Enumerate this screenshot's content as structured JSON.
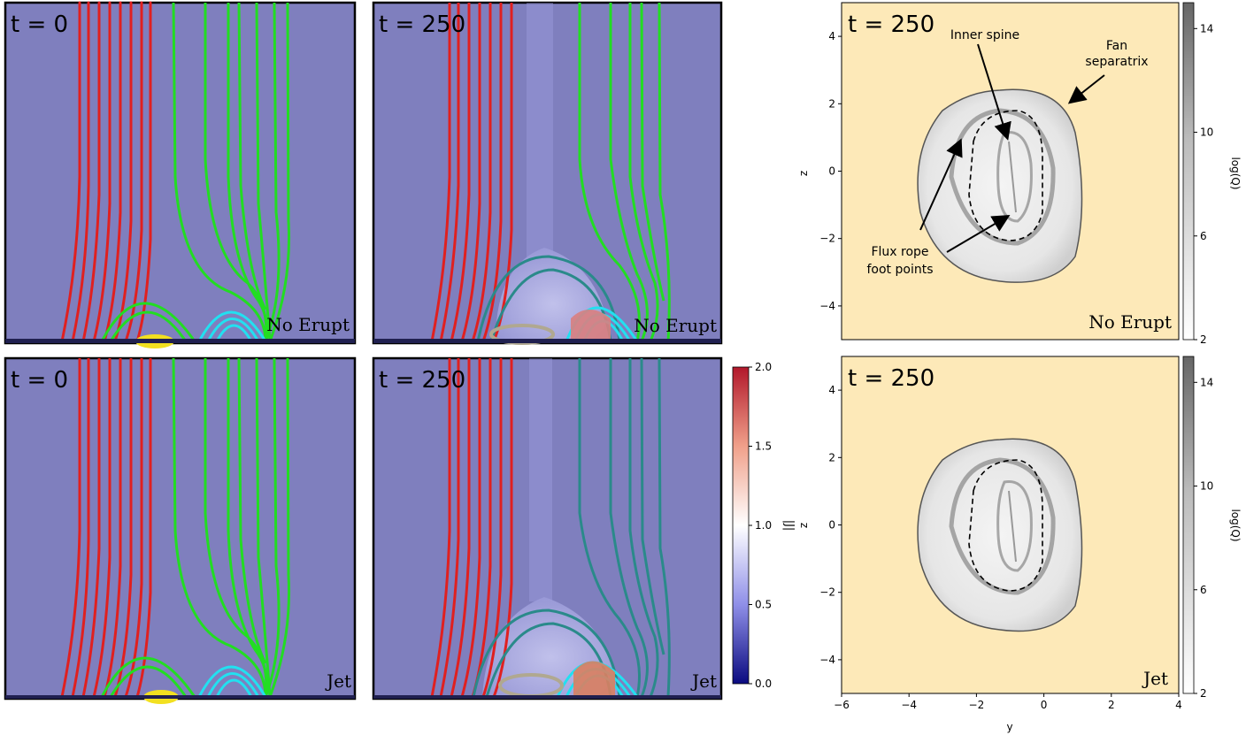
{
  "panels": {
    "top_left": {
      "time_label": "t = 0",
      "case_label": "No Erupt"
    },
    "top_mid": {
      "time_label": "t = 250",
      "case_label": "No Erupt"
    },
    "bot_left": {
      "time_label": "t = 0",
      "case_label": "Jet"
    },
    "bot_mid": {
      "time_label": "t = 250",
      "case_label": "Jet"
    }
  },
  "j_colorbar": {
    "label": "|J|",
    "ticks": [
      "2.0",
      "1.5",
      "1.0",
      "0.5",
      "0.0"
    ],
    "range": [
      0.0,
      2.0
    ],
    "colors": {
      "top": "#b2182b",
      "mid": "#ffffff",
      "bottom": "#0a0a80"
    }
  },
  "q_maps": {
    "top": {
      "time_label": "t = 250",
      "case_label": "No Erupt"
    },
    "bottom": {
      "time_label": "t = 250",
      "case_label": "Jet"
    },
    "xlabel": "y",
    "ylabel": "z",
    "xticks": [
      "−6",
      "−4",
      "−2",
      "0",
      "2",
      "4"
    ],
    "yticks": [
      "4",
      "2",
      "0",
      "−2",
      "−4"
    ],
    "xlim": [
      -6,
      4
    ],
    "ylim": [
      -5,
      5
    ],
    "q_colorbar": {
      "label": "log(Q)",
      "ticks": [
        "14",
        "10",
        "6",
        "2"
      ],
      "range": [
        2,
        15
      ]
    },
    "annotations": {
      "inner_spine": "Inner spine",
      "fan_line1": "Fan",
      "fan_line2": "separatrix",
      "flux_line1": "Flux rope",
      "flux_line2": "foot points"
    }
  },
  "colors": {
    "background_blue": "#7f7fbe",
    "q_background": "#fde9b8",
    "red_lines": "#e02020",
    "green_lines": "#22dd22",
    "cyan_lines": "#22e0f0",
    "teal_lines": "#2a8a8a"
  }
}
